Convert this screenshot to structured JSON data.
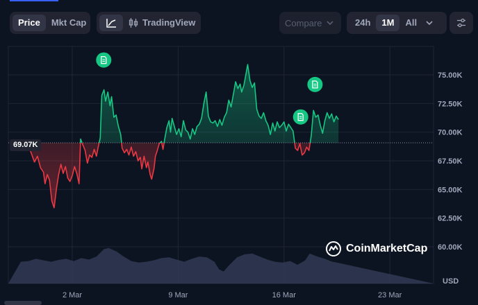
{
  "tabs": {
    "price_label": "Price",
    "mktcap_label": "Mkt Cap",
    "tradingview_label": "TradingView",
    "compare_label": "Compare"
  },
  "ranges": {
    "r24h": "24h",
    "r1m": "1M",
    "rall": "All"
  },
  "watermark": "CoinMarketCap",
  "currency_label": "USD",
  "current_price_label": "69.07K",
  "colors": {
    "background": "#0d1421",
    "up": "#16c784",
    "down": "#ea3943",
    "volume": "#333a55",
    "grid": "#1f2536"
  },
  "icons": {
    "line_chart": "line-chart-icon",
    "candles": "candlestick-icon",
    "dropdown": "chevron-down-icon",
    "settings": "sliders-icon",
    "event": "document-icon"
  },
  "chart_data": {
    "type": "line",
    "ylim": [
      58500,
      77000
    ],
    "y_ticks": [
      {
        "v": 75000,
        "label": "75.00K"
      },
      {
        "v": 72500,
        "label": "72.50K"
      },
      {
        "v": 70000,
        "label": "70.00K"
      },
      {
        "v": 67500,
        "label": "67.50K"
      },
      {
        "v": 65000,
        "label": "65.00K"
      },
      {
        "v": 62500,
        "label": "62.50K"
      },
      {
        "v": 60000,
        "label": "60.00K"
      }
    ],
    "x_ticks": [
      {
        "day": 2,
        "label": "2 Mar"
      },
      {
        "day": 9,
        "label": "9 Mar"
      },
      {
        "day": 16,
        "label": "16 Mar"
      },
      {
        "day": 23,
        "label": "23 Mar"
      }
    ],
    "baseline": 69070,
    "price": [
      [
        -1.4,
        69200
      ],
      [
        -1.1,
        68700
      ],
      [
        -0.8,
        68500
      ],
      [
        -0.5,
        67400
      ],
      [
        -0.3,
        67900
      ],
      [
        -0.1,
        66900
      ],
      [
        0.1,
        66500
      ],
      [
        0.2,
        65500
      ],
      [
        0.35,
        66300
      ],
      [
        0.5,
        65800
      ],
      [
        0.65,
        64000
      ],
      [
        0.8,
        63400
      ],
      [
        0.95,
        65000
      ],
      [
        1.1,
        66300
      ],
      [
        1.25,
        67200
      ],
      [
        1.4,
        66400
      ],
      [
        1.55,
        67000
      ],
      [
        1.7,
        66000
      ],
      [
        1.85,
        65700
      ],
      [
        2.0,
        66200
      ],
      [
        2.15,
        67000
      ],
      [
        2.3,
        66400
      ],
      [
        2.45,
        65500
      ],
      [
        2.55,
        69400
      ],
      [
        2.7,
        68900
      ],
      [
        2.85,
        68400
      ],
      [
        3.0,
        67300
      ],
      [
        3.15,
        68000
      ],
      [
        3.3,
        67800
      ],
      [
        3.45,
        68500
      ],
      [
        3.6,
        67900
      ],
      [
        3.7,
        68600
      ],
      [
        3.85,
        69500
      ],
      [
        3.95,
        73200
      ],
      [
        4.1,
        73700
      ],
      [
        4.2,
        72700
      ],
      [
        4.35,
        73500
      ],
      [
        4.5,
        72300
      ],
      [
        4.6,
        73100
      ],
      [
        4.75,
        71300
      ],
      [
        4.9,
        71500
      ],
      [
        5.05,
        70500
      ],
      [
        5.2,
        69800
      ],
      [
        5.3,
        68600
      ],
      [
        5.45,
        68200
      ],
      [
        5.6,
        68500
      ],
      [
        5.75,
        68000
      ],
      [
        5.9,
        68700
      ],
      [
        6.05,
        67900
      ],
      [
        6.2,
        68300
      ],
      [
        6.35,
        67500
      ],
      [
        6.5,
        67800
      ],
      [
        6.6,
        66800
      ],
      [
        6.75,
        67900
      ],
      [
        6.9,
        66900
      ],
      [
        7.0,
        67400
      ],
      [
        7.15,
        66300
      ],
      [
        7.25,
        65900
      ],
      [
        7.4,
        66800
      ],
      [
        7.5,
        67900
      ],
      [
        7.6,
        68300
      ],
      [
        7.75,
        69000
      ],
      [
        7.9,
        69200
      ],
      [
        8.0,
        68500
      ],
      [
        8.1,
        69300
      ],
      [
        8.25,
        70400
      ],
      [
        8.4,
        71000
      ],
      [
        8.5,
        70000
      ],
      [
        8.6,
        71200
      ],
      [
        8.75,
        70500
      ],
      [
        8.9,
        69800
      ],
      [
        9.05,
        70300
      ],
      [
        9.2,
        69600
      ],
      [
        9.35,
        71000
      ],
      [
        9.5,
        70200
      ],
      [
        9.65,
        70000
      ],
      [
        9.8,
        69400
      ],
      [
        9.95,
        70300
      ],
      [
        10.1,
        69800
      ],
      [
        10.25,
        70500
      ],
      [
        10.4,
        70700
      ],
      [
        10.55,
        71200
      ],
      [
        10.7,
        72500
      ],
      [
        10.85,
        73500
      ],
      [
        11.0,
        71400
      ],
      [
        11.15,
        70900
      ],
      [
        11.3,
        70800
      ],
      [
        11.45,
        71000
      ],
      [
        11.6,
        70500
      ],
      [
        11.75,
        71100
      ],
      [
        11.9,
        70600
      ],
      [
        12.05,
        71300
      ],
      [
        12.2,
        71700
      ],
      [
        12.35,
        72800
      ],
      [
        12.5,
        72200
      ],
      [
        12.65,
        73300
      ],
      [
        12.8,
        74400
      ],
      [
        12.95,
        73800
      ],
      [
        13.1,
        74200
      ],
      [
        13.2,
        73500
      ],
      [
        13.35,
        74100
      ],
      [
        13.5,
        75200
      ],
      [
        13.6,
        75900
      ],
      [
        13.75,
        74500
      ],
      [
        13.9,
        73900
      ],
      [
        14.05,
        74300
      ],
      [
        14.2,
        72000
      ],
      [
        14.35,
        71400
      ],
      [
        14.5,
        71200
      ],
      [
        14.65,
        71700
      ],
      [
        14.8,
        71000
      ],
      [
        14.95,
        70600
      ],
      [
        15.1,
        69800
      ],
      [
        15.25,
        70800
      ],
      [
        15.4,
        70100
      ],
      [
        15.55,
        70900
      ],
      [
        15.7,
        70400
      ],
      [
        15.85,
        70600
      ],
      [
        16.0,
        70900
      ],
      [
        16.15,
        70100
      ],
      [
        16.3,
        70700
      ],
      [
        16.45,
        70400
      ],
      [
        16.6,
        70100
      ],
      [
        16.75,
        68600
      ],
      [
        16.9,
        68400
      ],
      [
        17.05,
        69000
      ],
      [
        17.2,
        68000
      ],
      [
        17.35,
        68200
      ],
      [
        17.5,
        68700
      ],
      [
        17.65,
        68400
      ],
      [
        17.8,
        69700
      ],
      [
        17.95,
        71900
      ],
      [
        18.1,
        71300
      ],
      [
        18.25,
        71500
      ],
      [
        18.4,
        70600
      ],
      [
        18.55,
        69900
      ],
      [
        18.7,
        71000
      ],
      [
        18.85,
        71700
      ],
      [
        19.0,
        71200
      ],
      [
        19.15,
        71600
      ],
      [
        19.3,
        70900
      ],
      [
        19.45,
        71400
      ],
      [
        19.6,
        71100
      ]
    ],
    "volume": [
      [
        -1.4,
        0.58
      ],
      [
        -0.9,
        0.6
      ],
      [
        -0.4,
        0.66
      ],
      [
        0.1,
        0.62
      ],
      [
        0.6,
        0.58
      ],
      [
        1.1,
        0.63
      ],
      [
        1.6,
        0.66
      ],
      [
        2.1,
        0.6
      ],
      [
        2.6,
        0.68
      ],
      [
        3.1,
        0.64
      ],
      [
        3.6,
        0.72
      ],
      [
        4.1,
        0.92
      ],
      [
        4.4,
        0.95
      ],
      [
        4.9,
        0.86
      ],
      [
        5.4,
        0.72
      ],
      [
        5.9,
        0.6
      ],
      [
        6.4,
        0.56
      ],
      [
        6.9,
        0.58
      ],
      [
        7.4,
        0.62
      ],
      [
        7.9,
        0.68
      ],
      [
        8.4,
        0.7
      ],
      [
        8.9,
        0.64
      ],
      [
        9.4,
        0.58
      ],
      [
        9.9,
        0.66
      ],
      [
        10.4,
        0.72
      ],
      [
        10.9,
        0.7
      ],
      [
        11.4,
        0.58
      ],
      [
        11.7,
        0.38
      ],
      [
        12.0,
        0.32
      ],
      [
        12.4,
        0.5
      ],
      [
        12.9,
        0.7
      ],
      [
        13.4,
        0.78
      ],
      [
        13.9,
        0.8
      ],
      [
        14.4,
        0.72
      ],
      [
        14.9,
        0.64
      ],
      [
        15.4,
        0.58
      ],
      [
        15.9,
        0.56
      ],
      [
        16.4,
        0.6
      ],
      [
        16.9,
        0.5
      ],
      [
        17.4,
        0.62
      ],
      [
        17.7,
        0.8
      ],
      [
        18.2,
        0.72
      ],
      [
        18.7,
        0.66
      ],
      [
        19.2,
        0.58
      ],
      [
        19.6,
        0.55
      ]
    ],
    "events": [
      4.08,
      17.1,
      18.05
    ]
  }
}
